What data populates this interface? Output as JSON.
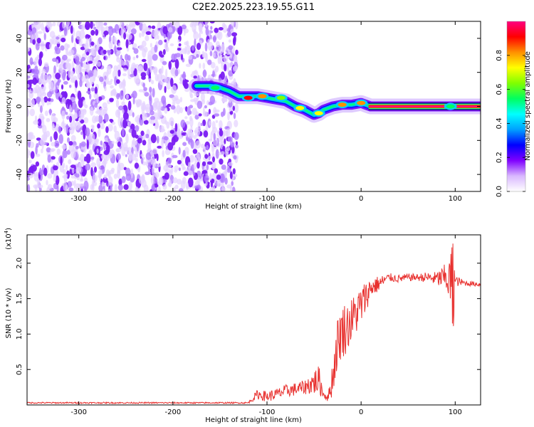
{
  "title": "C2E2.2025.223.19.55.G11",
  "chart_data": [
    {
      "type": "heatmap",
      "panel": "spectrogram",
      "xlabel": "Height of straight line (km)",
      "ylabel": "Frequency (Hz)",
      "xlim": [
        -355,
        127
      ],
      "ylim": [
        -50,
        50
      ],
      "xticks": [
        -300,
        -200,
        -100,
        0,
        100
      ],
      "xtick_labels": [
        "-300",
        "-200",
        "-100",
        "0",
        "100"
      ],
      "yticks": [
        -40,
        -20,
        0,
        20,
        40
      ],
      "ytick_labels": [
        "-40",
        "-20",
        "0",
        "20",
        "40"
      ],
      "colorbar": {
        "label": "Normalized spectral amplitude",
        "range": [
          0,
          1
        ],
        "ticks": [
          0.0,
          0.2,
          0.4,
          0.6,
          0.8
        ],
        "tick_labels": [
          "0.0",
          "0.2",
          "0.4",
          "0.6",
          "0.8"
        ],
        "colors": [
          "#ffffff",
          "#d9b8ff",
          "#8000ff",
          "#0000ff",
          "#00a0ff",
          "#00ffff",
          "#00ff60",
          "#80ff00",
          "#ffff00",
          "#ff9000",
          "#ff0000",
          "#ff0080"
        ]
      },
      "noise_region_x": [
        -355,
        -132
      ],
      "signal_track": {
        "x": [
          -175,
          -160,
          -150,
          -140,
          -130,
          -120,
          -110,
          -100,
          -90,
          -80,
          -70,
          -60,
          -50,
          -45,
          -40,
          -30,
          -20,
          -10,
          0,
          10,
          50,
          90,
          127
        ],
        "y": [
          12,
          12,
          11,
          9,
          6,
          6,
          6,
          5,
          4,
          3,
          0,
          -2,
          -5,
          -4,
          -2,
          0,
          1,
          1,
          2,
          0,
          0,
          0,
          0
        ]
      },
      "bright_spots": [
        {
          "x": -155,
          "y": 11,
          "level": 0.55
        },
        {
          "x": -120,
          "y": 5,
          "level": 0.9
        },
        {
          "x": -105,
          "y": 6,
          "level": 0.8
        },
        {
          "x": -85,
          "y": 5,
          "level": 0.6
        },
        {
          "x": -65,
          "y": -1,
          "level": 0.75
        },
        {
          "x": -45,
          "y": -4,
          "level": 0.7
        },
        {
          "x": -20,
          "y": 1,
          "level": 0.85
        },
        {
          "x": 0,
          "y": 2,
          "level": 0.8
        },
        {
          "x": 95,
          "y": 0,
          "level": 0.55
        }
      ],
      "steady_band": {
        "x": [
          8,
          127
        ],
        "y": 0
      }
    },
    {
      "type": "line",
      "panel": "snr",
      "xlabel": "Height of straight line (km)",
      "ylabel": "SNR (10 * v/v)",
      "yscale_label": "(x10",
      "yscale_exp": "4",
      "xlim": [
        -355,
        127
      ],
      "ylim": [
        0,
        2.4
      ],
      "xticks": [
        -300,
        -200,
        -100,
        0,
        100
      ],
      "xtick_labels": [
        "-300",
        "-200",
        "-100",
        "0",
        "100"
      ],
      "yticks": [
        0.5,
        1.0,
        1.5,
        2.0
      ],
      "ytick_labels": [
        "0.5",
        "1.0",
        "1.5",
        "2.0"
      ],
      "color": "#e8312f",
      "envelope": {
        "x": [
          -355,
          -120,
          -110,
          -100,
          -90,
          -80,
          -70,
          -60,
          -50,
          -45,
          -40,
          -35,
          -30,
          -25,
          -20,
          -15,
          -10,
          0,
          10,
          20,
          30,
          40,
          50,
          60,
          70,
          80,
          90,
          95,
          100,
          110,
          127
        ],
        "y": [
          0.03,
          0.03,
          0.15,
          0.12,
          0.15,
          0.2,
          0.22,
          0.25,
          0.32,
          0.35,
          0.15,
          0.1,
          0.4,
          0.9,
          1.05,
          1.1,
          1.2,
          1.4,
          1.65,
          1.72,
          1.8,
          1.78,
          1.8,
          1.8,
          1.8,
          1.78,
          1.8,
          1.75,
          1.75,
          1.72,
          1.7
        ]
      },
      "noise_amplitude": {
        "x": [
          -355,
          -120,
          -110,
          -60,
          -50,
          -45,
          -40,
          -35,
          -30,
          -25,
          -20,
          -10,
          0,
          10,
          30,
          60,
          80,
          90,
          95,
          98,
          100,
          110,
          127
        ],
        "y": [
          0.01,
          0.01,
          0.07,
          0.1,
          0.18,
          0.22,
          0.05,
          0.06,
          0.28,
          0.35,
          0.4,
          0.32,
          0.3,
          0.15,
          0.06,
          0.05,
          0.1,
          0.2,
          0.4,
          0.55,
          0.08,
          0.04,
          0.03
        ]
      }
    }
  ]
}
